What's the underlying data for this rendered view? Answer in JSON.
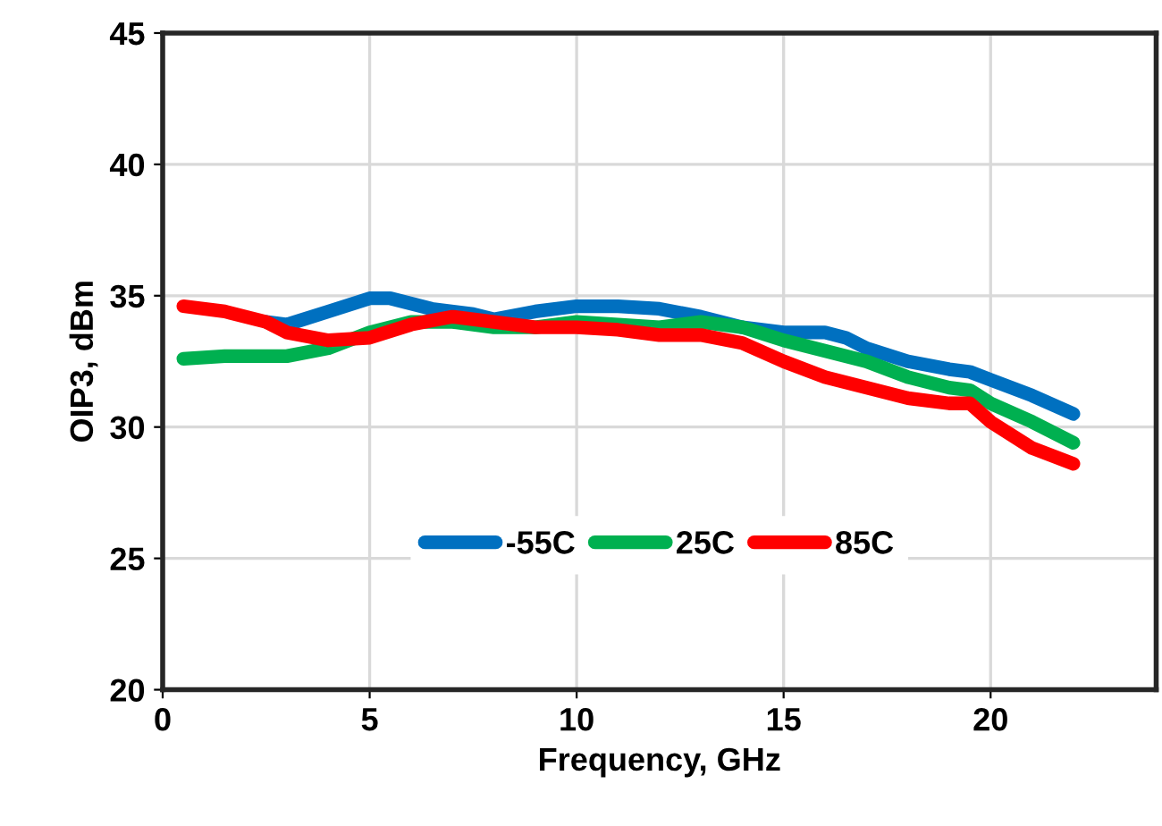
{
  "chart_data": {
    "type": "line",
    "xlabel": "Frequency, GHz",
    "ylabel": "OIP3, dBm",
    "xlim": [
      0,
      24
    ],
    "xticks": [
      0,
      5,
      10,
      15,
      20
    ],
    "ylim": [
      20,
      45
    ],
    "yticks": [
      20,
      25,
      30,
      35,
      40,
      45
    ],
    "grid": true,
    "legend": "bottom",
    "marker": "none",
    "line_style": "solid",
    "series": [
      {
        "name": "-55C",
        "color": "#0070c0",
        "x": [
          2.5,
          3,
          4,
          5,
          5.5,
          6.5,
          7.5,
          8,
          9,
          10,
          11,
          12,
          13,
          14,
          15,
          16,
          16.5,
          17,
          18,
          19,
          19.5,
          20,
          21,
          22
        ],
        "values": [
          34.0,
          33.9,
          34.4,
          34.9,
          34.9,
          34.5,
          34.3,
          34.1,
          34.4,
          34.6,
          34.6,
          34.5,
          34.2,
          33.8,
          33.6,
          33.6,
          33.4,
          33.0,
          32.5,
          32.2,
          32.1,
          31.8,
          31.2,
          30.5
        ]
      },
      {
        "name": "25C",
        "color": "#00b050",
        "x": [
          0.5,
          1.5,
          3,
          4,
          5,
          6,
          7,
          8,
          9,
          10,
          11,
          12,
          13,
          14,
          15,
          16,
          17,
          18,
          19,
          19.5,
          20,
          21,
          22
        ],
        "values": [
          32.6,
          32.7,
          32.7,
          33.0,
          33.6,
          34.0,
          34.0,
          33.8,
          33.8,
          34.0,
          33.9,
          33.8,
          34.0,
          33.8,
          33.3,
          32.9,
          32.5,
          31.9,
          31.5,
          31.4,
          30.9,
          30.2,
          29.4
        ]
      },
      {
        "name": "85C",
        "color": "#ff0000",
        "x": [
          0.5,
          1.5,
          2.5,
          3,
          4,
          5,
          6,
          7,
          8,
          9,
          10,
          11,
          12,
          13,
          14,
          15,
          16,
          17,
          18,
          19,
          19.5,
          20,
          21,
          22
        ],
        "values": [
          34.6,
          34.4,
          34.0,
          33.6,
          33.3,
          33.4,
          33.9,
          34.2,
          34.0,
          33.8,
          33.8,
          33.7,
          33.5,
          33.5,
          33.2,
          32.5,
          31.9,
          31.5,
          31.1,
          30.9,
          30.9,
          30.2,
          29.2,
          28.6
        ]
      }
    ]
  }
}
